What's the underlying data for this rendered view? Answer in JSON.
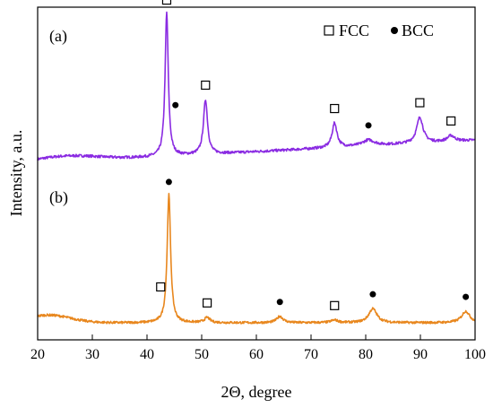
{
  "chart_data": {
    "type": "line",
    "xlabel": "2Θ, degree",
    "ylabel": "Intensity, a.u.",
    "xlim": [
      20,
      100
    ],
    "x_ticks": [
      "20",
      "30",
      "40",
      "50",
      "60",
      "70",
      "80",
      "90",
      "100"
    ],
    "y_ticks_shown": false,
    "grid": false,
    "legend": {
      "placement": "top-right",
      "entries": [
        {
          "marker": "open-square",
          "label": "FCC"
        },
        {
          "marker": "filled-circle",
          "label": "BCC"
        }
      ]
    },
    "panels": [
      {
        "label": "(a)",
        "color": "#8a2be2",
        "baseline": 0.1,
        "slope": 0.002,
        "hump_low": {
          "center": 25,
          "width": 6,
          "height": 0.04
        },
        "peaks": [
          {
            "x": 43.6,
            "height": 1.0,
            "width": 0.35
          },
          {
            "x": 50.7,
            "height": 0.38,
            "width": 0.45
          },
          {
            "x": 74.3,
            "height": 0.17,
            "width": 0.55
          },
          {
            "x": 80.5,
            "height": 0.04,
            "width": 1.3
          },
          {
            "x": 89.9,
            "height": 0.18,
            "width": 0.7
          },
          {
            "x": 95.6,
            "height": 0.04,
            "width": 0.8
          }
        ],
        "markers": [
          {
            "x": 43.6,
            "phase": "FCC"
          },
          {
            "x": 45.2,
            "phase": "BCC"
          },
          {
            "x": 50.7,
            "phase": "FCC"
          },
          {
            "x": 74.3,
            "phase": "FCC"
          },
          {
            "x": 80.5,
            "phase": "BCC"
          },
          {
            "x": 89.9,
            "phase": "FCC"
          },
          {
            "x": 95.6,
            "phase": "FCC"
          }
        ]
      },
      {
        "label": "(b)",
        "color": "#e8871e",
        "baseline": 0.06,
        "slope": 0.0,
        "hump_low": {
          "center": 22,
          "width": 4,
          "height": 0.06
        },
        "peaks": [
          {
            "x": 44.0,
            "height": 1.0,
            "width": 0.38
          },
          {
            "x": 51.0,
            "height": 0.04,
            "width": 0.6
          },
          {
            "x": 64.3,
            "height": 0.05,
            "width": 0.7
          },
          {
            "x": 74.3,
            "height": 0.02,
            "width": 0.8
          },
          {
            "x": 81.3,
            "height": 0.11,
            "width": 0.9
          },
          {
            "x": 98.3,
            "height": 0.09,
            "width": 0.9
          }
        ],
        "markers": [
          {
            "x": 44.0,
            "phase": "BCC"
          },
          {
            "x": 42.5,
            "phase": "FCC"
          },
          {
            "x": 51.0,
            "phase": "FCC"
          },
          {
            "x": 64.3,
            "phase": "BCC"
          },
          {
            "x": 74.3,
            "phase": "FCC"
          },
          {
            "x": 81.3,
            "phase": "BCC"
          },
          {
            "x": 98.3,
            "phase": "BCC"
          }
        ]
      }
    ]
  }
}
